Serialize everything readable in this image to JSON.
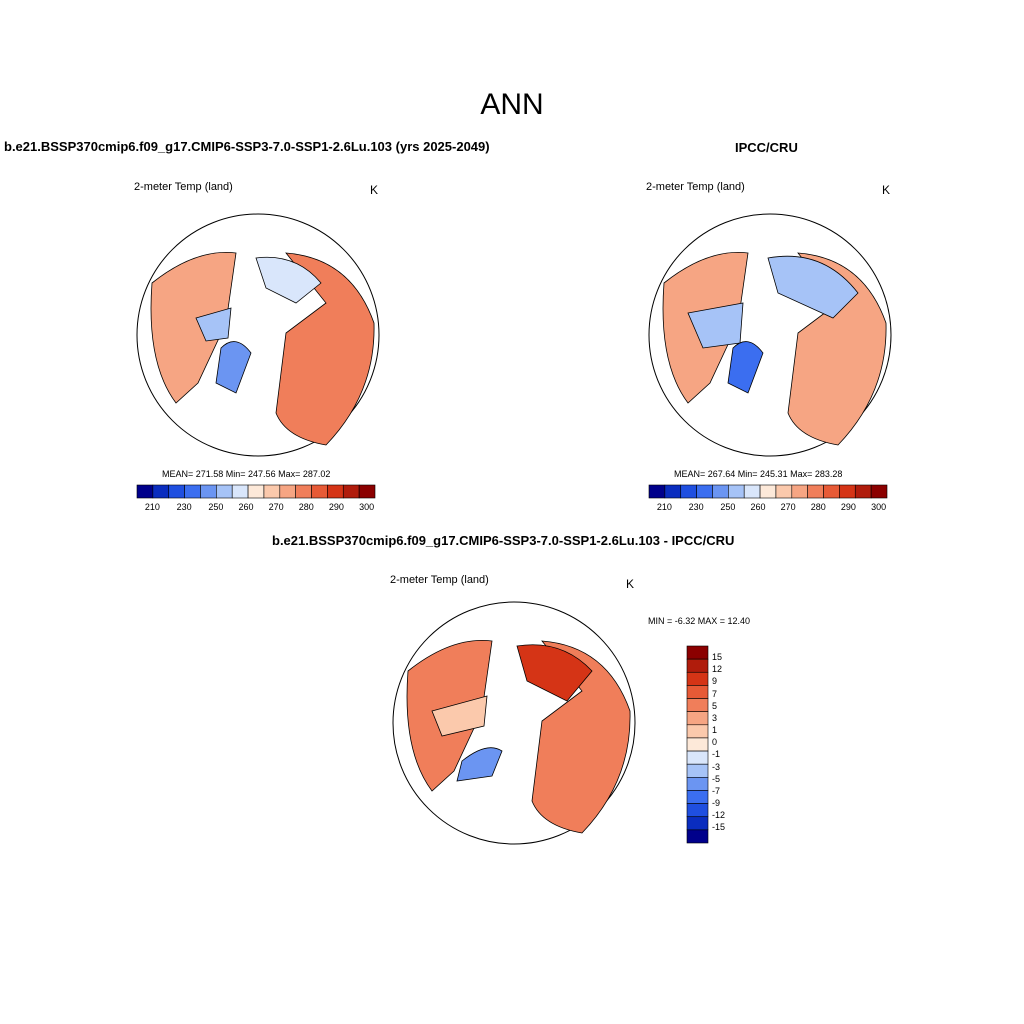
{
  "title": "ANN",
  "panels": [
    {
      "header": "b.e21.BSSP370cmip6.f09_g17.CMIP6-SSP3-7.0-SSP1-2.6Lu.103 (yrs 2025-2049)",
      "variable": "2-meter Temp (land)",
      "units": "K",
      "stats": "MEAN= 271.58  Min= 247.56  Max= 287.02",
      "colorbar_labels": [
        "210",
        "230",
        "250",
        "260",
        "270",
        "280",
        "290",
        "300"
      ]
    },
    {
      "header": "IPCC/CRU",
      "variable": "2-meter Temp (land)",
      "units": "K",
      "stats": "MEAN= 267.64  Min= 245.31  Max= 283.28",
      "colorbar_labels": [
        "210",
        "230",
        "250",
        "260",
        "270",
        "280",
        "290",
        "300"
      ]
    },
    {
      "header": "b.e21.BSSP370cmip6.f09_g17.CMIP6-SSP3-7.0-SSP1-2.6Lu.103 - IPCC/CRU",
      "variable": "2-meter Temp (land)",
      "units": "K",
      "stats": "MIN =  -6.32 MAX =  12.40",
      "colorbar_labels": [
        "15",
        "12",
        "9",
        "7",
        "5",
        "3",
        "1",
        "0",
        "-1",
        "-3",
        "-5",
        "-7",
        "-9",
        "-12",
        "-15"
      ]
    }
  ],
  "palettes": {
    "abs": [
      "#00008b",
      "#0a2dbf",
      "#1f4fe0",
      "#3b6ef0",
      "#6b95f2",
      "#a6c3f7",
      "#d9e6fb",
      "#fde9d9",
      "#fbc9ac",
      "#f6a583",
      "#f07e5a",
      "#e75a36",
      "#d53416",
      "#b01c0c",
      "#8b0000"
    ],
    "diff": [
      "#8b0000",
      "#b01c0c",
      "#d53416",
      "#e75a36",
      "#f07e5a",
      "#f6a583",
      "#fbc9ac",
      "#fde9d9",
      "#d9e6fb",
      "#a6c3f7",
      "#6b95f2",
      "#3b6ef0",
      "#1f4fe0",
      "#0a2dbf",
      "#00008b"
    ]
  }
}
